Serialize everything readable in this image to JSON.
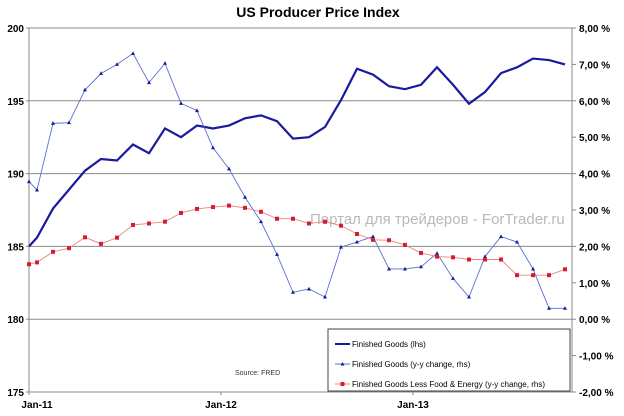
{
  "chart_data": {
    "type": "line",
    "title": "US Producer Price Index",
    "source": "Source: FRED",
    "watermark": "Портал для трейдеров - ForTrader.ru",
    "x_tick_labels": [
      "Jan-11",
      "Jan-12",
      "Jan-13"
    ],
    "x_tick_positions": [
      -0.5,
      11.5,
      23.5
    ],
    "x": [
      -0.5,
      0,
      1,
      2,
      3,
      4,
      5,
      6,
      7,
      8,
      9,
      10,
      11,
      12,
      13,
      14,
      15,
      16,
      17,
      18,
      19,
      20,
      21,
      22,
      23,
      24,
      25,
      26,
      27,
      28,
      29,
      30,
      31,
      32,
      33
    ],
    "left_axis": {
      "ylim": [
        175,
        200
      ],
      "ticks": [
        "175",
        "180",
        "185",
        "190",
        "195",
        "200"
      ],
      "tick_values": [
        175,
        180,
        185,
        190,
        195,
        200
      ]
    },
    "right_axis": {
      "ylim": [
        -2,
        8
      ],
      "ticks": [
        "-2,00 %",
        "-1,00 %",
        "0,00 %",
        "1,00 %",
        "2,00 %",
        "3,00 %",
        "4,00 %",
        "5,00 %",
        "6,00 %",
        "7,00 %",
        "8,00 %"
      ],
      "tick_values": [
        -2,
        -1,
        0,
        1,
        2,
        3,
        4,
        5,
        6,
        7,
        8
      ]
    },
    "grid": true,
    "legend_position": "bottom-right",
    "series": [
      {
        "name": "Finished Goods (lhs)",
        "axis": "left",
        "color": "#1a1a9c",
        "marker": "none",
        "values": [
          185.0,
          185.6,
          187.6,
          188.9,
          190.2,
          191.0,
          190.9,
          192.0,
          191.4,
          193.1,
          192.5,
          193.3,
          193.1,
          193.3,
          193.8,
          194.0,
          193.6,
          192.4,
          192.5,
          193.2,
          195.05,
          197.2,
          196.8,
          196.0,
          195.8,
          196.1,
          197.3,
          196.1,
          194.8,
          195.6,
          196.9,
          197.3,
          197.9,
          197.8,
          197.5
        ]
      },
      {
        "name": "Finished Goods (y-y change, rhs)",
        "axis": "right",
        "color": "#5b6fd0",
        "marker": "triangle",
        "values": [
          3.78,
          3.55,
          5.38,
          5.4,
          6.3,
          6.75,
          7.0,
          7.3,
          6.5,
          7.03,
          5.93,
          5.73,
          4.71,
          4.13,
          3.35,
          2.68,
          1.78,
          0.74,
          0.83,
          0.61,
          1.98,
          2.12,
          2.27,
          1.38,
          1.38,
          1.44,
          1.81,
          1.12,
          0.61,
          1.72,
          2.27,
          2.12,
          1.38,
          0.3,
          0.3
        ]
      },
      {
        "name": "Finished Goods Less Food & Energy (y-y change, rhs)",
        "axis": "right",
        "color": "#e03030",
        "marker": "square",
        "values": [
          1.51,
          1.56,
          1.85,
          1.95,
          2.25,
          2.07,
          2.24,
          2.59,
          2.63,
          2.68,
          2.92,
          3.03,
          3.08,
          3.12,
          3.06,
          2.95,
          2.76,
          2.76,
          2.63,
          2.68,
          2.57,
          2.34,
          2.18,
          2.17,
          2.04,
          1.82,
          1.72,
          1.7,
          1.64,
          1.64,
          1.64,
          1.21,
          1.21,
          1.21,
          1.37
        ]
      }
    ]
  }
}
